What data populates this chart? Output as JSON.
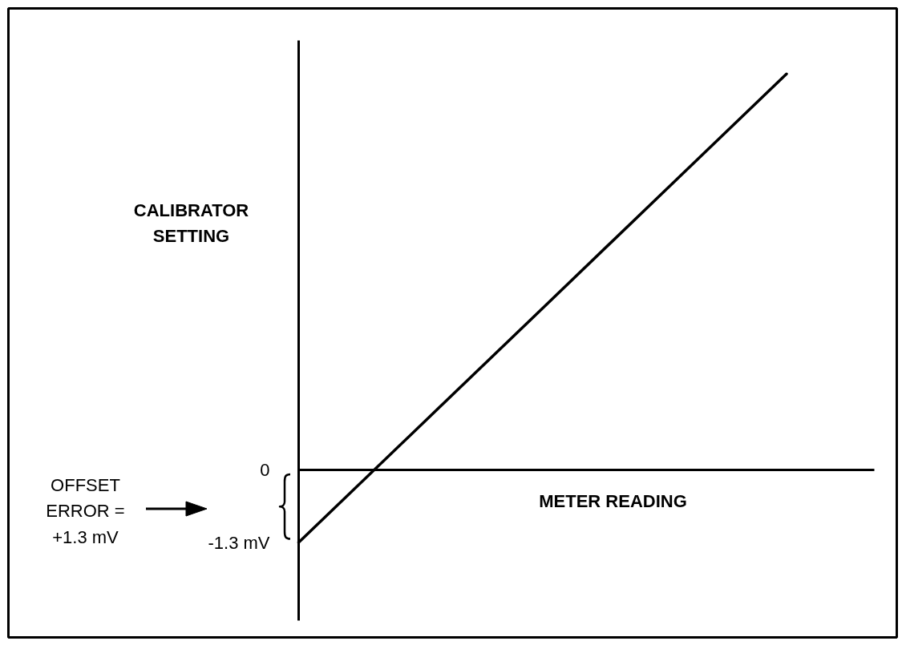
{
  "chart_data": {
    "type": "line",
    "xlabel": "METER READING",
    "ylabel": "CALIBRATOR SETTING",
    "categories": [
      null,
      null,
      null
    ],
    "values": [
      -1.3,
      2.9,
      7.1
    ],
    "color": "#000000",
    "ylim": [
      -2.7,
      7.7
    ],
    "yticks": [
      0,
      {
        "value": -1.3,
        "label": "-1.3 mV"
      }
    ],
    "ref_lines": [
      {
        "axis": "y",
        "value": 0,
        "color": "#000000"
      }
    ],
    "annotations": [
      "OFFSET ERROR = +1.3 mV"
    ],
    "grid": false,
    "marker": "none",
    "line_style": "solid"
  }
}
